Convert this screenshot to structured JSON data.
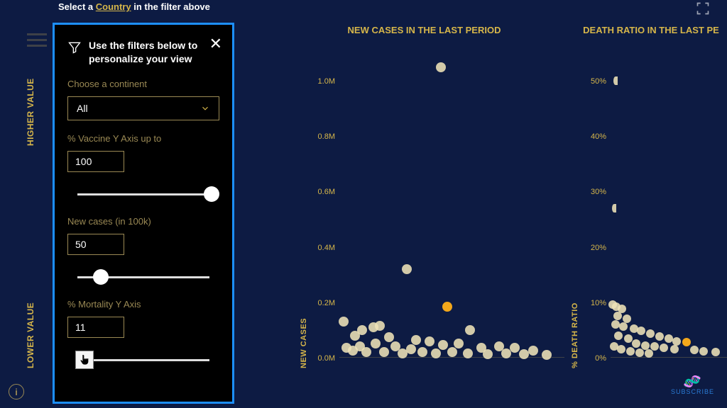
{
  "colors": {
    "background": "#0d1b43",
    "panel_bg": "#000000",
    "panel_border": "#1d8fff",
    "text_primary": "#d6b64a",
    "text_secondary": "#9a8954",
    "text_white": "#ffffff",
    "slider_track": "#dedede",
    "slider_thumb": "#ffffff",
    "point_fill": "#eee2b7",
    "point_highlight": "#f2a71b",
    "subscribe": "#2a7bd6"
  },
  "topbar": {
    "prefix": "Select a ",
    "country_word": "Country",
    "suffix": " in the filter above"
  },
  "axis_labels": {
    "higher": "HIGHER VALUE",
    "lower": "LOWER VALUE"
  },
  "info_glyph": "i",
  "subscribe_label": "SUBSCRIBE",
  "panel": {
    "heading": "Use the filters below to personalize your view",
    "close_glyph": "✕",
    "continent": {
      "label": "Choose a continent",
      "value": "All"
    },
    "vaccine": {
      "label": "% Vaccine Y Axis up to",
      "value": "100",
      "slider_pct": 95
    },
    "newcases": {
      "label": "New cases (in 100k)",
      "value": "50",
      "slider_pct": 22
    },
    "mortality": {
      "label": "% Mortality Y Axis",
      "value": "11",
      "slider_pct": 11,
      "cursor_thumb": true
    }
  },
  "chart1": {
    "title": "NEW CASES IN THE LAST PERIOD",
    "y_label": "NEW CASES",
    "y_range": [
      0,
      1.1
    ],
    "ticks": [
      {
        "v": 0.0,
        "label": "0.0M"
      },
      {
        "v": 0.2,
        "label": "0.2M"
      },
      {
        "v": 0.4,
        "label": "0.4M"
      },
      {
        "v": 0.6,
        "label": "0.6M"
      },
      {
        "v": 0.8,
        "label": "0.8M"
      },
      {
        "v": 1.0,
        "label": "1.0M"
      }
    ],
    "point_r": 7,
    "points": [
      {
        "x": 0.45,
        "y": 1.05,
        "hl": false
      },
      {
        "x": 0.3,
        "y": 0.32,
        "hl": false
      },
      {
        "x": 0.02,
        "y": 0.13,
        "hl": false
      },
      {
        "x": 0.48,
        "y": 0.185,
        "hl": true
      },
      {
        "x": 0.58,
        "y": 0.1,
        "hl": false
      },
      {
        "x": 0.15,
        "y": 0.11,
        "hl": false
      },
      {
        "x": 0.18,
        "y": 0.115,
        "hl": false
      },
      {
        "x": 0.1,
        "y": 0.1,
        "hl": false
      },
      {
        "x": 0.07,
        "y": 0.08,
        "hl": false
      },
      {
        "x": 0.22,
        "y": 0.075,
        "hl": false
      },
      {
        "x": 0.34,
        "y": 0.065,
        "hl": false
      },
      {
        "x": 0.4,
        "y": 0.06,
        "hl": false
      },
      {
        "x": 0.46,
        "y": 0.045,
        "hl": false
      },
      {
        "x": 0.53,
        "y": 0.05,
        "hl": false
      },
      {
        "x": 0.63,
        "y": 0.035,
        "hl": false
      },
      {
        "x": 0.71,
        "y": 0.04,
        "hl": false
      },
      {
        "x": 0.78,
        "y": 0.035,
        "hl": false
      },
      {
        "x": 0.86,
        "y": 0.025,
        "hl": false
      },
      {
        "x": 0.03,
        "y": 0.035,
        "hl": false
      },
      {
        "x": 0.06,
        "y": 0.025,
        "hl": false
      },
      {
        "x": 0.09,
        "y": 0.04,
        "hl": false
      },
      {
        "x": 0.12,
        "y": 0.02,
        "hl": false
      },
      {
        "x": 0.16,
        "y": 0.05,
        "hl": false
      },
      {
        "x": 0.2,
        "y": 0.02,
        "hl": false
      },
      {
        "x": 0.25,
        "y": 0.04,
        "hl": false
      },
      {
        "x": 0.28,
        "y": 0.015,
        "hl": false
      },
      {
        "x": 0.32,
        "y": 0.03,
        "hl": false
      },
      {
        "x": 0.37,
        "y": 0.02,
        "hl": false
      },
      {
        "x": 0.43,
        "y": 0.015,
        "hl": false
      },
      {
        "x": 0.5,
        "y": 0.02,
        "hl": false
      },
      {
        "x": 0.57,
        "y": 0.015,
        "hl": false
      },
      {
        "x": 0.66,
        "y": 0.012,
        "hl": false
      },
      {
        "x": 0.74,
        "y": 0.015,
        "hl": false
      },
      {
        "x": 0.82,
        "y": 0.012,
        "hl": false
      },
      {
        "x": 0.92,
        "y": 0.01,
        "hl": false
      }
    ]
  },
  "chart2": {
    "title": "DEATH RATIO IN THE LAST PE",
    "y_label": "% DEATH RATIO",
    "y_range": [
      0,
      55
    ],
    "ticks": [
      {
        "v": 0,
        "label": "0%"
      },
      {
        "v": 10,
        "label": "10%"
      },
      {
        "v": 20,
        "label": "20%"
      },
      {
        "v": 30,
        "label": "30%"
      },
      {
        "v": 40,
        "label": "40%"
      },
      {
        "v": 50,
        "label": "50%"
      }
    ],
    "point_r": 6,
    "points": [
      {
        "x": 0.06,
        "y": 50,
        "hl": false,
        "half": true
      },
      {
        "x": 0.05,
        "y": 27,
        "hl": false,
        "half": true
      },
      {
        "x": 0.02,
        "y": 9.6,
        "hl": false
      },
      {
        "x": 0.05,
        "y": 9.2,
        "hl": false
      },
      {
        "x": 0.1,
        "y": 8.8,
        "hl": false
      },
      {
        "x": 0.06,
        "y": 7.5,
        "hl": false
      },
      {
        "x": 0.14,
        "y": 7.0,
        "hl": false
      },
      {
        "x": 0.04,
        "y": 6.0,
        "hl": false
      },
      {
        "x": 0.11,
        "y": 5.6,
        "hl": false
      },
      {
        "x": 0.2,
        "y": 5.2,
        "hl": false
      },
      {
        "x": 0.26,
        "y": 4.8,
        "hl": false
      },
      {
        "x": 0.34,
        "y": 4.4,
        "hl": false
      },
      {
        "x": 0.42,
        "y": 3.8,
        "hl": false
      },
      {
        "x": 0.5,
        "y": 3.4,
        "hl": false
      },
      {
        "x": 0.57,
        "y": 3.0,
        "hl": false
      },
      {
        "x": 0.65,
        "y": 2.8,
        "hl": true
      },
      {
        "x": 0.07,
        "y": 4.0,
        "hl": false
      },
      {
        "x": 0.15,
        "y": 3.4,
        "hl": false
      },
      {
        "x": 0.22,
        "y": 2.6,
        "hl": false
      },
      {
        "x": 0.3,
        "y": 2.2,
        "hl": false
      },
      {
        "x": 0.38,
        "y": 2.0,
        "hl": false
      },
      {
        "x": 0.46,
        "y": 1.8,
        "hl": false
      },
      {
        "x": 0.55,
        "y": 1.5,
        "hl": false
      },
      {
        "x": 0.72,
        "y": 1.4,
        "hl": false
      },
      {
        "x": 0.8,
        "y": 1.2,
        "hl": false
      },
      {
        "x": 0.9,
        "y": 1.0,
        "hl": false
      },
      {
        "x": 0.03,
        "y": 2.0,
        "hl": false
      },
      {
        "x": 0.09,
        "y": 1.6,
        "hl": false
      },
      {
        "x": 0.17,
        "y": 1.2,
        "hl": false
      },
      {
        "x": 0.25,
        "y": 0.9,
        "hl": false
      },
      {
        "x": 0.33,
        "y": 0.8,
        "hl": false
      }
    ]
  }
}
